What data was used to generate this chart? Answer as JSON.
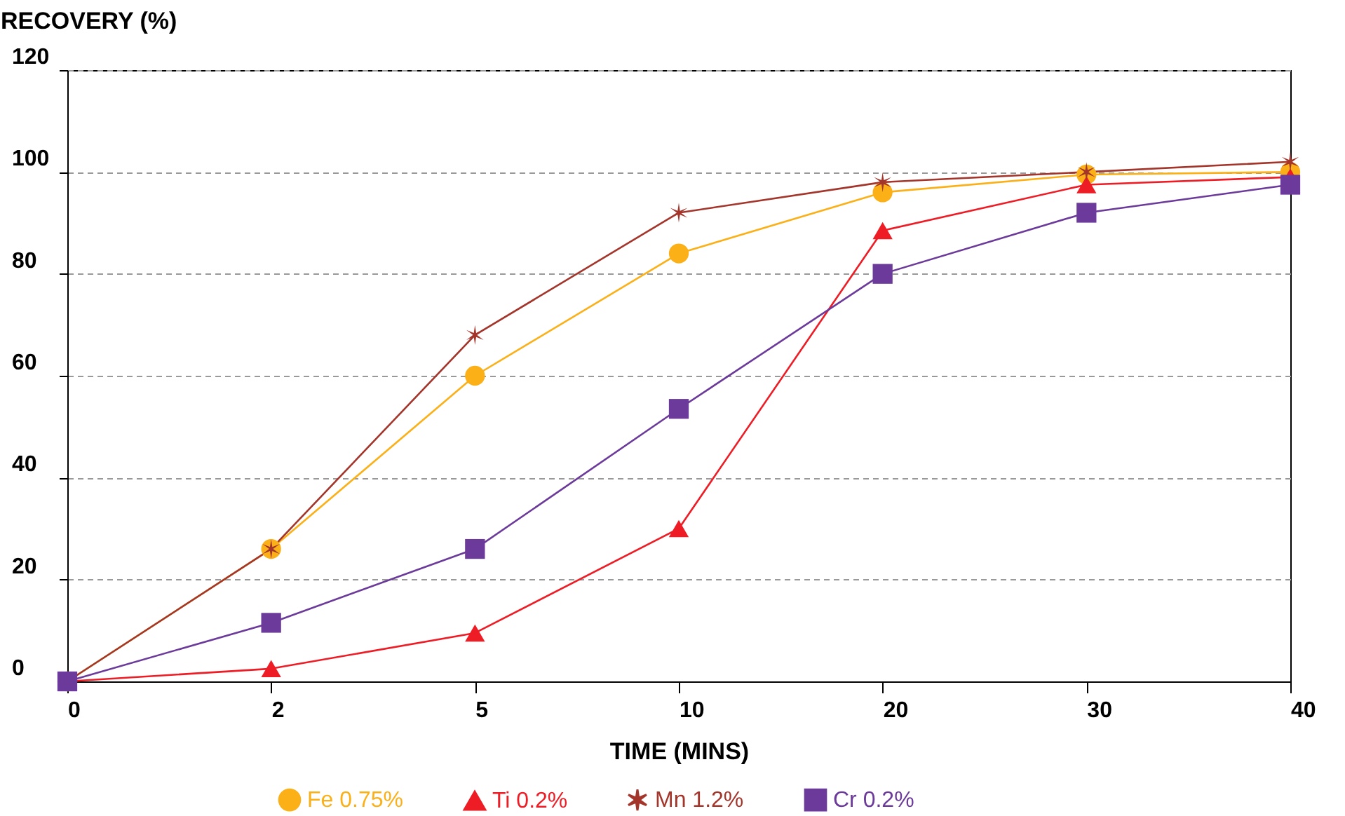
{
  "chart_data": {
    "type": "line",
    "xlabel": "TIME (MINS)",
    "ylabel": "RECOVERY (%)",
    "categories": [
      "0",
      "2",
      "5",
      "10",
      "20",
      "30",
      "40"
    ],
    "ylim": [
      0,
      120
    ],
    "yticks": [
      0,
      20,
      40,
      60,
      80,
      100,
      120
    ],
    "grid": "y",
    "legend": "bottom",
    "series": [
      {
        "name": "Fe 0.75%",
        "color": "#fbb018",
        "marker": "circle",
        "values": [
          0,
          26,
          60,
          84,
          96,
          99.5,
          100
        ]
      },
      {
        "name": "Ti 0.2%",
        "color": "#ee1c25",
        "marker": "triangle",
        "values": [
          0,
          2.5,
          9.5,
          30,
          88.5,
          97.5,
          99
        ]
      },
      {
        "name": "Mn 1.2%",
        "color": "#a3352b",
        "marker": "cross",
        "values": [
          0,
          26,
          68,
          92,
          98,
          100,
          102
        ]
      },
      {
        "name": "Cr 0.2%",
        "color": "#6b3a9a",
        "marker": "square",
        "values": [
          0,
          11.5,
          26,
          53.5,
          80,
          92,
          97.5
        ]
      }
    ]
  }
}
